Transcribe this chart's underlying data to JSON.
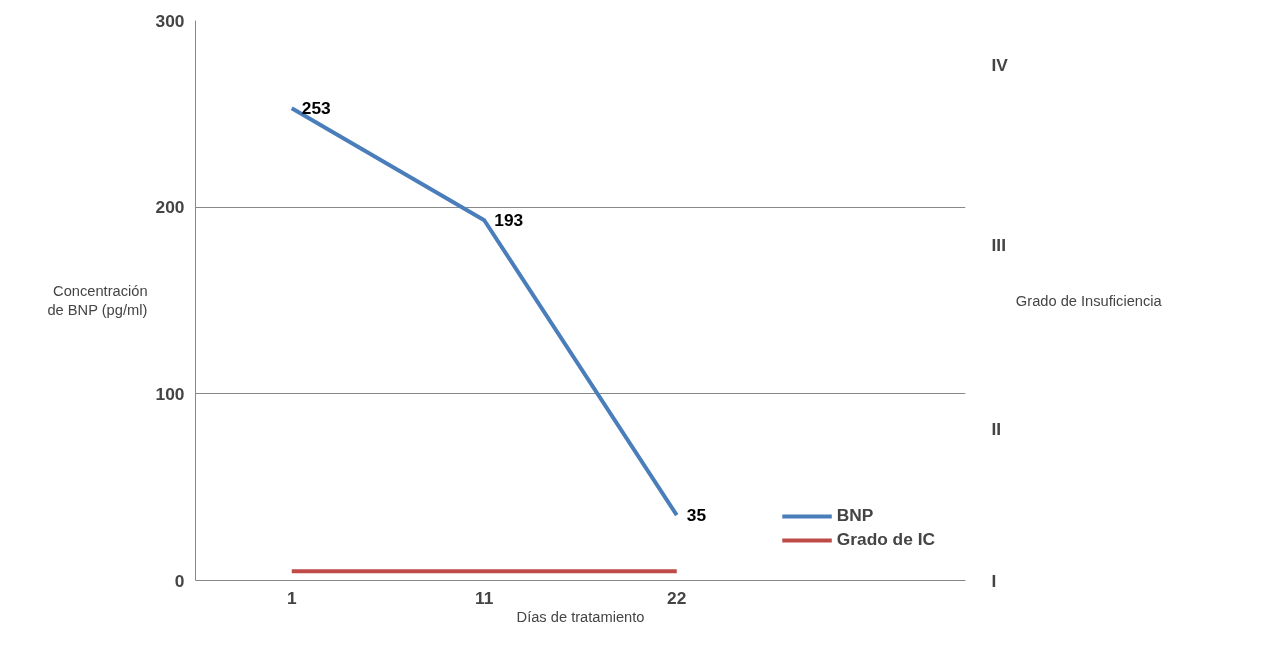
{
  "chart_data": {
    "type": "line",
    "xlabel": "Días de tratamiento",
    "ylabel": "Concentración\nde BNP (pg/ml)",
    "categories": [
      "1",
      "11",
      "22",
      null
    ],
    "series": [
      {
        "name": "BNP",
        "color": "#4a7ebb",
        "values": [
          253,
          193,
          35,
          null
        ],
        "value_labels": [
          "253",
          "193",
          "35",
          null
        ]
      },
      {
        "name": "Grado de IC",
        "color": "#be4b48",
        "values": [
          5,
          5,
          5,
          null
        ]
      }
    ],
    "ylim": [
      0,
      300
    ],
    "yticks": [
      0,
      100,
      200,
      300
    ],
    "annotations": [
      "I",
      "II",
      "III",
      "IV",
      "Grado de Insuficiencia"
    ],
    "grid": "y",
    "legend": "right",
    "marker": "none",
    "line_style": "solid"
  }
}
